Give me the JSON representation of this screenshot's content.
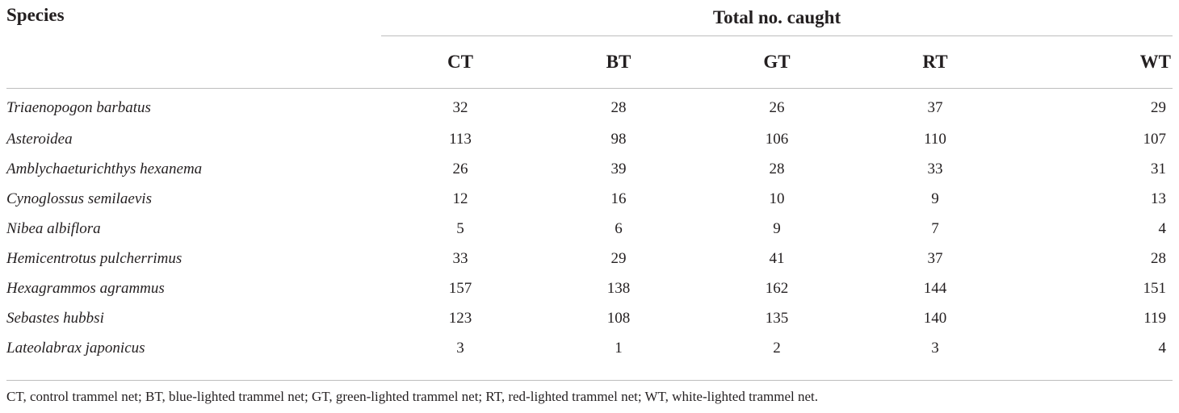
{
  "table": {
    "header_species": "Species",
    "header_group": "Total no. caught",
    "columns": [
      "CT",
      "BT",
      "GT",
      "RT",
      "WT"
    ],
    "rows": [
      {
        "species": "Triaenopogon barbatus",
        "values": [
          "32",
          "28",
          "26",
          "37",
          "29"
        ]
      },
      {
        "species": "Asteroidea",
        "values": [
          "113",
          "98",
          "106",
          "110",
          "107"
        ]
      },
      {
        "species": "Amblychaeturichthys hexanema",
        "values": [
          "26",
          "39",
          "28",
          "33",
          "31"
        ]
      },
      {
        "species": "Cynoglossus semilaevis",
        "values": [
          "12",
          "16",
          "10",
          "9",
          "13"
        ]
      },
      {
        "species": "Nibea albiflora",
        "values": [
          "5",
          "6",
          "9",
          "7",
          "4"
        ]
      },
      {
        "species": "Hemicentrotus pulcherrimus",
        "values": [
          "33",
          "29",
          "41",
          "37",
          "28"
        ]
      },
      {
        "species": "Hexagrammos agrammus",
        "values": [
          "157",
          "138",
          "162",
          "144",
          "151"
        ]
      },
      {
        "species": "Sebastes hubbsi",
        "values": [
          "123",
          "108",
          "135",
          "140",
          "119"
        ]
      },
      {
        "species": "Lateolabrax japonicus",
        "values": [
          "3",
          "1",
          "2",
          "3",
          "4"
        ]
      }
    ],
    "footnote": "CT, control trammel net; BT, blue-lighted trammel net; GT, green-lighted trammel net; RT, red-lighted trammel net; WT, white-lighted trammel net."
  }
}
